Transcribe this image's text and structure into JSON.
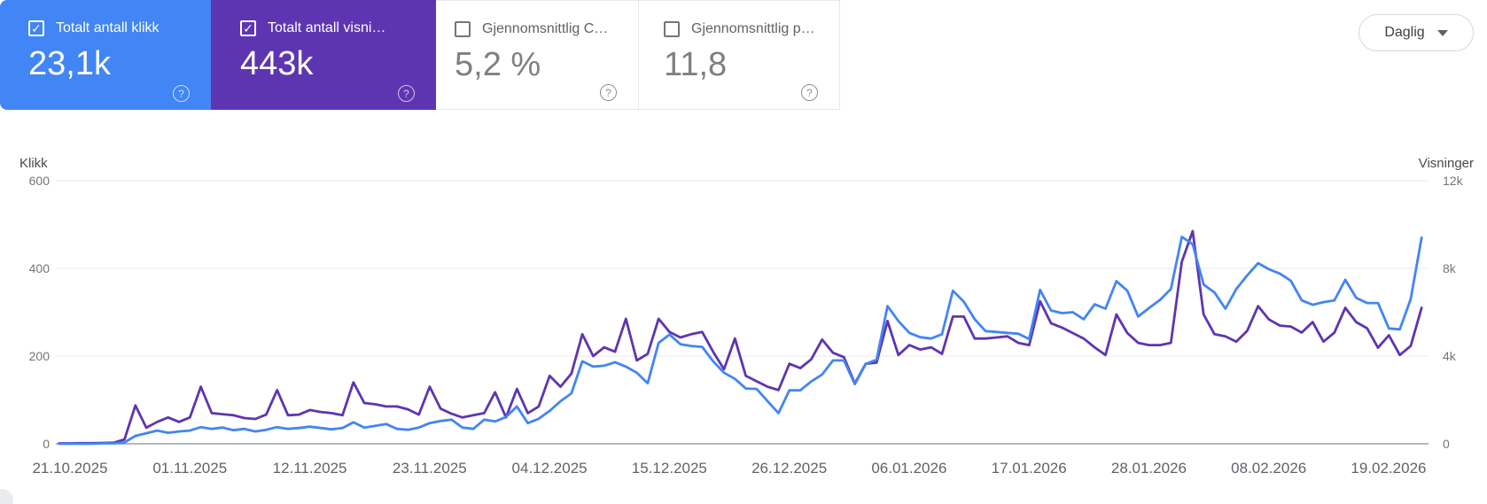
{
  "cards": [
    {
      "id": "clicks",
      "label": "Totalt antall klikk",
      "value": "23,1k",
      "checked": true,
      "color": "#4285f4"
    },
    {
      "id": "impressions",
      "label": "Totalt antall visni…",
      "value": "443k",
      "checked": true,
      "color": "#5e35b1"
    },
    {
      "id": "ctr",
      "label": "Gjennomsnittlig C…",
      "value": "5,2 %",
      "checked": false,
      "color": "#ffffff"
    },
    {
      "id": "position",
      "label": "Gjennomsnittlig p…",
      "value": "11,8",
      "checked": false,
      "color": "#ffffff"
    }
  ],
  "granularity": {
    "label": "Daglig"
  },
  "icons": {
    "check": "✓",
    "help": "?"
  },
  "chart": {
    "left_axis": {
      "title": "Klikk",
      "ticks": [
        "600",
        "400",
        "200",
        "0"
      ]
    },
    "right_axis": {
      "title": "Visninger",
      "ticks": [
        "12k",
        "8k",
        "4k",
        "0"
      ]
    }
  },
  "chart_data": {
    "type": "line",
    "interval": "daily",
    "start_date": "20.10.2025",
    "end_date": "22.02.2026",
    "x_tick_labels": [
      "21.10.2025",
      "01.11.2025",
      "12.11.2025",
      "23.11.2025",
      "04.12.2025",
      "15.12.2025",
      "26.12.2025",
      "06.01.2026",
      "17.01.2026",
      "28.01.2026",
      "08.02.2026",
      "19.02.2026"
    ],
    "left_ylim": [
      0,
      600
    ],
    "right_ylim": [
      0,
      12000
    ],
    "grid": "horizontal",
    "legend": "none",
    "series": [
      {
        "name": "Klikk",
        "axis": "left",
        "color": "#4285f4",
        "values": [
          0,
          0,
          0,
          0,
          1,
          1,
          3,
          18,
          24,
          30,
          25,
          28,
          30,
          38,
          34,
          37,
          31,
          34,
          28,
          32,
          38,
          34,
          36,
          39,
          36,
          33,
          36,
          49,
          37,
          41,
          45,
          34,
          32,
          37,
          47,
          52,
          55,
          37,
          34,
          55,
          51,
          61,
          85,
          47,
          57,
          75,
          97,
          115,
          188,
          176,
          178,
          186,
          176,
          162,
          138,
          230,
          249,
          227,
          223,
          221,
          188,
          162,
          148,
          126,
          125,
          97,
          70,
          122,
          122,
          142,
          158,
          190,
          190,
          136,
          182,
          192,
          314,
          280,
          253,
          243,
          240,
          250,
          349,
          324,
          284,
          257,
          255,
          253,
          251,
          239,
          351,
          304,
          298,
          300,
          284,
          318,
          308,
          371,
          349,
          290,
          310,
          328,
          353,
          472,
          455,
          363,
          345,
          308,
          353,
          384,
          412,
          398,
          388,
          372,
          327,
          317,
          323,
          327,
          374,
          333,
          321,
          321,
          263,
          261,
          330,
          470
        ]
      },
      {
        "name": "Visninger",
        "axis": "right",
        "color": "#5e35b1",
        "values": [
          20,
          20,
          30,
          30,
          40,
          50,
          200,
          1750,
          730,
          1000,
          1200,
          1000,
          1200,
          2600,
          1400,
          1350,
          1300,
          1170,
          1130,
          1330,
          2450,
          1300,
          1330,
          1540,
          1450,
          1400,
          1300,
          2800,
          1860,
          1800,
          1700,
          1700,
          1570,
          1330,
          2600,
          1600,
          1370,
          1200,
          1300,
          1400,
          2350,
          1200,
          2500,
          1400,
          1700,
          3100,
          2600,
          3200,
          5000,
          4000,
          4400,
          4200,
          5700,
          3800,
          4100,
          5700,
          5100,
          4850,
          5000,
          5100,
          4200,
          3400,
          4800,
          3100,
          2850,
          2600,
          2450,
          3650,
          3450,
          3850,
          4750,
          4150,
          3950,
          2750,
          3650,
          3700,
          5600,
          4050,
          4500,
          4300,
          4400,
          4100,
          5800,
          5800,
          4800,
          4800,
          4850,
          4900,
          4600,
          4500,
          6500,
          5500,
          5300,
          5050,
          4800,
          4400,
          4050,
          5900,
          5050,
          4600,
          4500,
          4500,
          4600,
          8300,
          9700,
          5900,
          5000,
          4900,
          4660,
          5150,
          6280,
          5670,
          5390,
          5350,
          5070,
          5550,
          4660,
          5070,
          6200,
          5550,
          5270,
          4380,
          4950,
          4050,
          4460,
          6200
        ]
      }
    ]
  }
}
